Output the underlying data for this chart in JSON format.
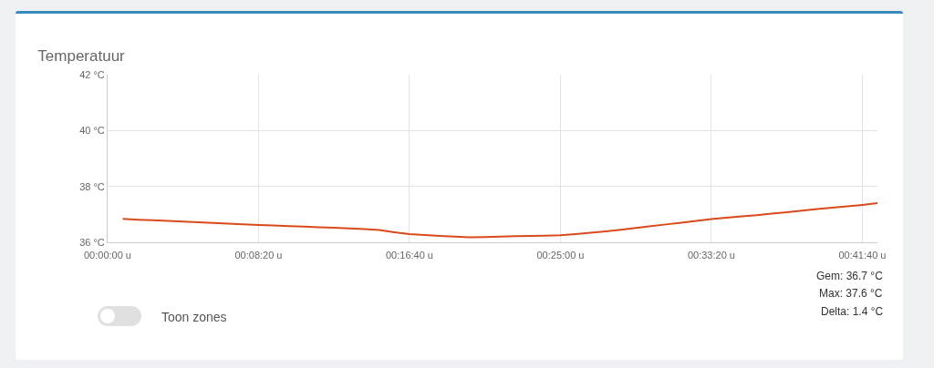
{
  "chart_data": {
    "type": "line",
    "title": "Temperatuur",
    "categories": [
      "00:00:00 u",
      null,
      null,
      null,
      null,
      null,
      null,
      null,
      null,
      null,
      "00:08:20 u",
      null,
      null,
      null,
      null,
      null,
      null,
      null,
      null,
      null,
      "00:16:40 u",
      null,
      null,
      null,
      null,
      null,
      null,
      null,
      null,
      null,
      "00:25:00 u",
      null,
      null,
      null,
      null,
      null,
      null,
      null,
      null,
      null,
      "00:33:20 u",
      null,
      null,
      null,
      null,
      null,
      null,
      null,
      null,
      null,
      "00:41:40 u",
      null
    ],
    "series": [
      {
        "color": "#d84a1b",
        "values": [
          null,
          36.84,
          36.81,
          36.79,
          36.77,
          36.74,
          36.72,
          36.69,
          36.67,
          36.64,
          36.62,
          36.6,
          36.58,
          36.56,
          36.54,
          36.52,
          36.5,
          36.47,
          36.44,
          36.36,
          36.29,
          36.26,
          36.23,
          36.2,
          36.18,
          36.19,
          36.2,
          36.22,
          36.23,
          36.24,
          36.25,
          36.29,
          36.34,
          36.39,
          36.45,
          36.51,
          36.58,
          36.64,
          36.7,
          36.77,
          36.83,
          36.88,
          36.93,
          36.97,
          37.03,
          37.08,
          37.13,
          37.19,
          37.24,
          37.29,
          37.34,
          37.4
        ]
      }
    ],
    "ylim": [
      36,
      42
    ],
    "yticks": [
      {
        "value": 36,
        "label": "36 °C"
      },
      {
        "value": 38,
        "label": "38 °C"
      },
      {
        "value": 40,
        "label": "40 °C"
      },
      {
        "value": 42,
        "label": "42 °C"
      }
    ],
    "grid": true,
    "marker": "none",
    "line_style": "solid",
    "annotations": [
      "Toon zones",
      "Gem: 36.7 °C",
      "Max: 37.6 °C",
      "Delta: 1.4 °C"
    ]
  }
}
